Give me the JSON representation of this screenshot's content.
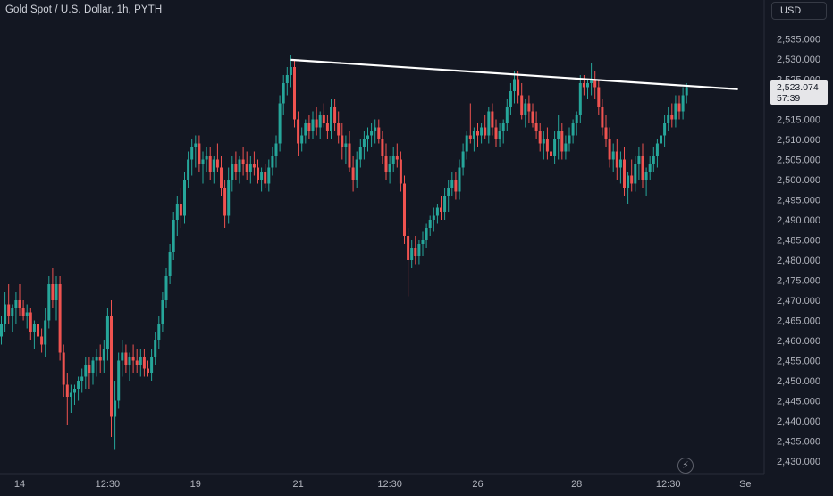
{
  "header": {
    "symbol_title": "Gold Spot / U.S. Dollar, 1h, PYTH"
  },
  "price_scale": {
    "currency_label": "USD",
    "current_price_label": "2,523.074",
    "countdown_label": "57:39"
  },
  "colors": {
    "background": "#131722",
    "up": "#26a69a",
    "down": "#ef5350",
    "trendline": "#ffffff",
    "text": "#d1d4dc"
  },
  "icons": {
    "replay": "lightning-icon"
  },
  "chart_data": {
    "type": "candlestick",
    "title": "Gold Spot / U.S. Dollar, 1h, PYTH",
    "ylim": [
      2428,
      2539
    ],
    "y_ticks": [
      "2,530.000",
      "2,525.000",
      "2,520.000",
      "2,515.000",
      "2,510.000",
      "2,505.000",
      "2,500.000",
      "2,495.000",
      "2,490.000",
      "2,485.000",
      "2,480.000",
      "2,475.000",
      "2,470.000",
      "2,465.000",
      "2,460.000",
      "2,455.000",
      "2,450.000",
      "2,445.000",
      "2,440.000",
      "2,435.000",
      "2,430.000"
    ],
    "y_tick_values": [
      2530,
      2525,
      2520,
      2515,
      2510,
      2505,
      2500,
      2495,
      2490,
      2485,
      2480,
      2475,
      2470,
      2465,
      2460,
      2455,
      2450,
      2445,
      2440,
      2435,
      2430
    ],
    "y_top_partial_label": "2,535.000",
    "y_top_partial_value": 2535,
    "x_ticks": [
      {
        "label": "14",
        "idx": 5
      },
      {
        "label": "12:30",
        "idx": 29
      },
      {
        "label": "19",
        "idx": 53
      },
      {
        "label": "21",
        "idx": 81
      },
      {
        "label": "12:30",
        "idx": 106
      },
      {
        "label": "26",
        "idx": 130
      },
      {
        "label": "28",
        "idx": 157
      },
      {
        "label": "12:30",
        "idx": 182
      },
      {
        "label": "Se",
        "idx": 203
      }
    ],
    "trendline": {
      "start": {
        "idx": 79,
        "value": 2529.8
      },
      "end": {
        "idx": 201,
        "value": 2522.5
      }
    },
    "last_price": 2523.074,
    "candles": [
      [
        2461,
        2466,
        2459,
        2464
      ],
      [
        2464,
        2472,
        2462,
        2469
      ],
      [
        2469,
        2474,
        2464,
        2466
      ],
      [
        2466,
        2469,
        2462,
        2468
      ],
      [
        2468,
        2472,
        2464,
        2470
      ],
      [
        2470,
        2474,
        2466,
        2468
      ],
      [
        2468,
        2470,
        2465,
        2466
      ],
      [
        2466,
        2469,
        2463,
        2467
      ],
      [
        2467,
        2468,
        2460,
        2462
      ],
      [
        2462,
        2465,
        2458,
        2464
      ],
      [
        2464,
        2466,
        2459,
        2461
      ],
      [
        2461,
        2463,
        2457,
        2459
      ],
      [
        2459,
        2468,
        2456,
        2465
      ],
      [
        2465,
        2476,
        2463,
        2474
      ],
      [
        2474,
        2478,
        2468,
        2470
      ],
      [
        2470,
        2476,
        2465,
        2474
      ],
      [
        2474,
        2476,
        2455,
        2457
      ],
      [
        2457,
        2459,
        2446,
        2449
      ],
      [
        2449,
        2452,
        2439,
        2446
      ],
      [
        2446,
        2449,
        2442,
        2447
      ],
      [
        2447,
        2449,
        2444,
        2448
      ],
      [
        2448,
        2451,
        2445,
        2450
      ],
      [
        2450,
        2453,
        2447,
        2451
      ],
      [
        2451,
        2456,
        2448,
        2454
      ],
      [
        2454,
        2456,
        2448,
        2452
      ],
      [
        2452,
        2456,
        2449,
        2455
      ],
      [
        2455,
        2458,
        2451,
        2456
      ],
      [
        2456,
        2459,
        2452,
        2455
      ],
      [
        2455,
        2460,
        2452,
        2458
      ],
      [
        2458,
        2468,
        2455,
        2466
      ],
      [
        2466,
        2470,
        2436,
        2441
      ],
      [
        2441,
        2450,
        2433,
        2445
      ],
      [
        2445,
        2457,
        2443,
        2455
      ],
      [
        2455,
        2460,
        2451,
        2457
      ],
      [
        2457,
        2459,
        2452,
        2454
      ],
      [
        2454,
        2457,
        2450,
        2456
      ],
      [
        2456,
        2459,
        2452,
        2455
      ],
      [
        2455,
        2458,
        2452,
        2454
      ],
      [
        2454,
        2458,
        2451,
        2456
      ],
      [
        2456,
        2458,
        2451,
        2453
      ],
      [
        2453,
        2455,
        2451,
        2452
      ],
      [
        2452,
        2458,
        2450,
        2456
      ],
      [
        2456,
        2462,
        2454,
        2460
      ],
      [
        2460,
        2466,
        2458,
        2464
      ],
      [
        2464,
        2472,
        2462,
        2470
      ],
      [
        2470,
        2478,
        2468,
        2476
      ],
      [
        2476,
        2484,
        2474,
        2482
      ],
      [
        2482,
        2492,
        2480,
        2490
      ],
      [
        2490,
        2496,
        2486,
        2494
      ],
      [
        2494,
        2498,
        2488,
        2491
      ],
      [
        2491,
        2502,
        2489,
        2500
      ],
      [
        2500,
        2507,
        2498,
        2505
      ],
      [
        2505,
        2510,
        2501,
        2508
      ],
      [
        2508,
        2511,
        2503,
        2509
      ],
      [
        2509,
        2511,
        2502,
        2504
      ],
      [
        2504,
        2507,
        2499,
        2505
      ],
      [
        2505,
        2508,
        2502,
        2506
      ],
      [
        2506,
        2508,
        2500,
        2502
      ],
      [
        2502,
        2506,
        2499,
        2505
      ],
      [
        2505,
        2509,
        2502,
        2503
      ],
      [
        2503,
        2506,
        2496,
        2498
      ],
      [
        2498,
        2500,
        2488,
        2491
      ],
      [
        2491,
        2503,
        2489,
        2500
      ],
      [
        2500,
        2506,
        2497,
        2504
      ],
      [
        2504,
        2507,
        2500,
        2502
      ],
      [
        2502,
        2506,
        2499,
        2505
      ],
      [
        2505,
        2508,
        2501,
        2504
      ],
      [
        2504,
        2507,
        2500,
        2502
      ],
      [
        2502,
        2506,
        2499,
        2504
      ],
      [
        2504,
        2507,
        2501,
        2503
      ],
      [
        2503,
        2505,
        2499,
        2500
      ],
      [
        2500,
        2503,
        2497,
        2502
      ],
      [
        2502,
        2504,
        2498,
        2499
      ],
      [
        2499,
        2505,
        2497,
        2503
      ],
      [
        2503,
        2508,
        2501,
        2506
      ],
      [
        2506,
        2511,
        2503,
        2509
      ],
      [
        2509,
        2521,
        2507,
        2519
      ],
      [
        2519,
        2526,
        2516,
        2524
      ],
      [
        2524,
        2528,
        2521,
        2526
      ],
      [
        2526,
        2531,
        2523,
        2528
      ],
      [
        2528,
        2530,
        2513,
        2515
      ],
      [
        2515,
        2517,
        2506,
        2509
      ],
      [
        2509,
        2513,
        2507,
        2511
      ],
      [
        2511,
        2515,
        2509,
        2514
      ],
      [
        2514,
        2516,
        2510,
        2512
      ],
      [
        2512,
        2517,
        2510,
        2515
      ],
      [
        2515,
        2518,
        2511,
        2513
      ],
      [
        2513,
        2517,
        2510,
        2516
      ],
      [
        2516,
        2519,
        2513,
        2514
      ],
      [
        2514,
        2516,
        2510,
        2512
      ],
      [
        2512,
        2520,
        2510,
        2518
      ],
      [
        2518,
        2520,
        2512,
        2514
      ],
      [
        2514,
        2517,
        2509,
        2511
      ],
      [
        2511,
        2514,
        2505,
        2508
      ],
      [
        2508,
        2511,
        2504,
        2509
      ],
      [
        2509,
        2512,
        2502,
        2503
      ],
      [
        2503,
        2506,
        2497,
        2500
      ],
      [
        2500,
        2507,
        2498,
        2505
      ],
      [
        2505,
        2510,
        2503,
        2508
      ],
      [
        2508,
        2512,
        2505,
        2510
      ],
      [
        2510,
        2513,
        2507,
        2511
      ],
      [
        2511,
        2514,
        2508,
        2512
      ],
      [
        2512,
        2515,
        2509,
        2513
      ],
      [
        2513,
        2515,
        2509,
        2510
      ],
      [
        2510,
        2512,
        2504,
        2506
      ],
      [
        2506,
        2509,
        2500,
        2502
      ],
      [
        2502,
        2506,
        2499,
        2504
      ],
      [
        2504,
        2508,
        2502,
        2506
      ],
      [
        2506,
        2509,
        2503,
        2505
      ],
      [
        2505,
        2507,
        2497,
        2499
      ],
      [
        2499,
        2501,
        2484,
        2486
      ],
      [
        2486,
        2488,
        2471,
        2480
      ],
      [
        2480,
        2485,
        2478,
        2483
      ],
      [
        2483,
        2486,
        2479,
        2481
      ],
      [
        2481,
        2485,
        2479,
        2484
      ],
      [
        2484,
        2487,
        2481,
        2485
      ],
      [
        2485,
        2489,
        2483,
        2488
      ],
      [
        2488,
        2491,
        2486,
        2490
      ],
      [
        2490,
        2493,
        2487,
        2491
      ],
      [
        2491,
        2494,
        2489,
        2493
      ],
      [
        2493,
        2496,
        2490,
        2492
      ],
      [
        2492,
        2498,
        2490,
        2496
      ],
      [
        2496,
        2500,
        2492,
        2498
      ],
      [
        2498,
        2502,
        2496,
        2500
      ],
      [
        2500,
        2502,
        2495,
        2497
      ],
      [
        2497,
        2505,
        2495,
        2503
      ],
      [
        2503,
        2509,
        2501,
        2507
      ],
      [
        2507,
        2512,
        2505,
        2511
      ],
      [
        2511,
        2519,
        2509,
        2510
      ],
      [
        2510,
        2513,
        2507,
        2512
      ],
      [
        2512,
        2514,
        2508,
        2511
      ],
      [
        2511,
        2514,
        2509,
        2513
      ],
      [
        2513,
        2516,
        2510,
        2511
      ],
      [
        2511,
        2518,
        2509,
        2517
      ],
      [
        2517,
        2519,
        2511,
        2513
      ],
      [
        2513,
        2515,
        2508,
        2510
      ],
      [
        2510,
        2514,
        2508,
        2512
      ],
      [
        2512,
        2515,
        2509,
        2514
      ],
      [
        2514,
        2520,
        2512,
        2518
      ],
      [
        2518,
        2524,
        2516,
        2522
      ],
      [
        2522,
        2527,
        2519,
        2525
      ],
      [
        2525,
        2527,
        2519,
        2521
      ],
      [
        2521,
        2524,
        2515,
        2516
      ],
      [
        2516,
        2520,
        2513,
        2519
      ],
      [
        2519,
        2521,
        2514,
        2517
      ],
      [
        2517,
        2519,
        2513,
        2514
      ],
      [
        2514,
        2517,
        2510,
        2512
      ],
      [
        2512,
        2514,
        2507,
        2509
      ],
      [
        2509,
        2512,
        2505,
        2510
      ],
      [
        2510,
        2513,
        2505,
        2507
      ],
      [
        2507,
        2509,
        2503,
        2506
      ],
      [
        2506,
        2512,
        2504,
        2510
      ],
      [
        2510,
        2516,
        2505,
        2512
      ],
      [
        2512,
        2514,
        2505,
        2507
      ],
      [
        2507,
        2511,
        2505,
        2509
      ],
      [
        2509,
        2513,
        2507,
        2511
      ],
      [
        2511,
        2515,
        2509,
        2514
      ],
      [
        2514,
        2517,
        2511,
        2516
      ],
      [
        2516,
        2526,
        2514,
        2524
      ],
      [
        2524,
        2526,
        2521,
        2523
      ],
      [
        2523,
        2525,
        2520,
        2524
      ],
      [
        2524,
        2529,
        2521,
        2525
      ],
      [
        2525,
        2527,
        2520,
        2523
      ],
      [
        2523,
        2525,
        2516,
        2518
      ],
      [
        2518,
        2520,
        2511,
        2513
      ],
      [
        2513,
        2516,
        2508,
        2510
      ],
      [
        2510,
        2513,
        2503,
        2505
      ],
      [
        2505,
        2509,
        2502,
        2507
      ],
      [
        2507,
        2510,
        2500,
        2503
      ],
      [
        2503,
        2507,
        2499,
        2505
      ],
      [
        2505,
        2508,
        2496,
        2498
      ],
      [
        2498,
        2502,
        2494,
        2501
      ],
      [
        2501,
        2505,
        2497,
        2499
      ],
      [
        2499,
        2506,
        2497,
        2504
      ],
      [
        2504,
        2508,
        2500,
        2506
      ],
      [
        2506,
        2509,
        2498,
        2500
      ],
      [
        2500,
        2503,
        2496,
        2502
      ],
      [
        2502,
        2506,
        2500,
        2504
      ],
      [
        2504,
        2508,
        2502,
        2506
      ],
      [
        2506,
        2510,
        2503,
        2509
      ],
      [
        2509,
        2513,
        2505,
        2511
      ],
      [
        2511,
        2516,
        2508,
        2514
      ],
      [
        2514,
        2518,
        2512,
        2516
      ],
      [
        2516,
        2519,
        2513,
        2515
      ],
      [
        2515,
        2521,
        2513,
        2519
      ],
      [
        2519,
        2521,
        2515,
        2517
      ],
      [
        2517,
        2523,
        2515,
        2521
      ],
      [
        2521,
        2524,
        2519,
        2523
      ]
    ]
  }
}
